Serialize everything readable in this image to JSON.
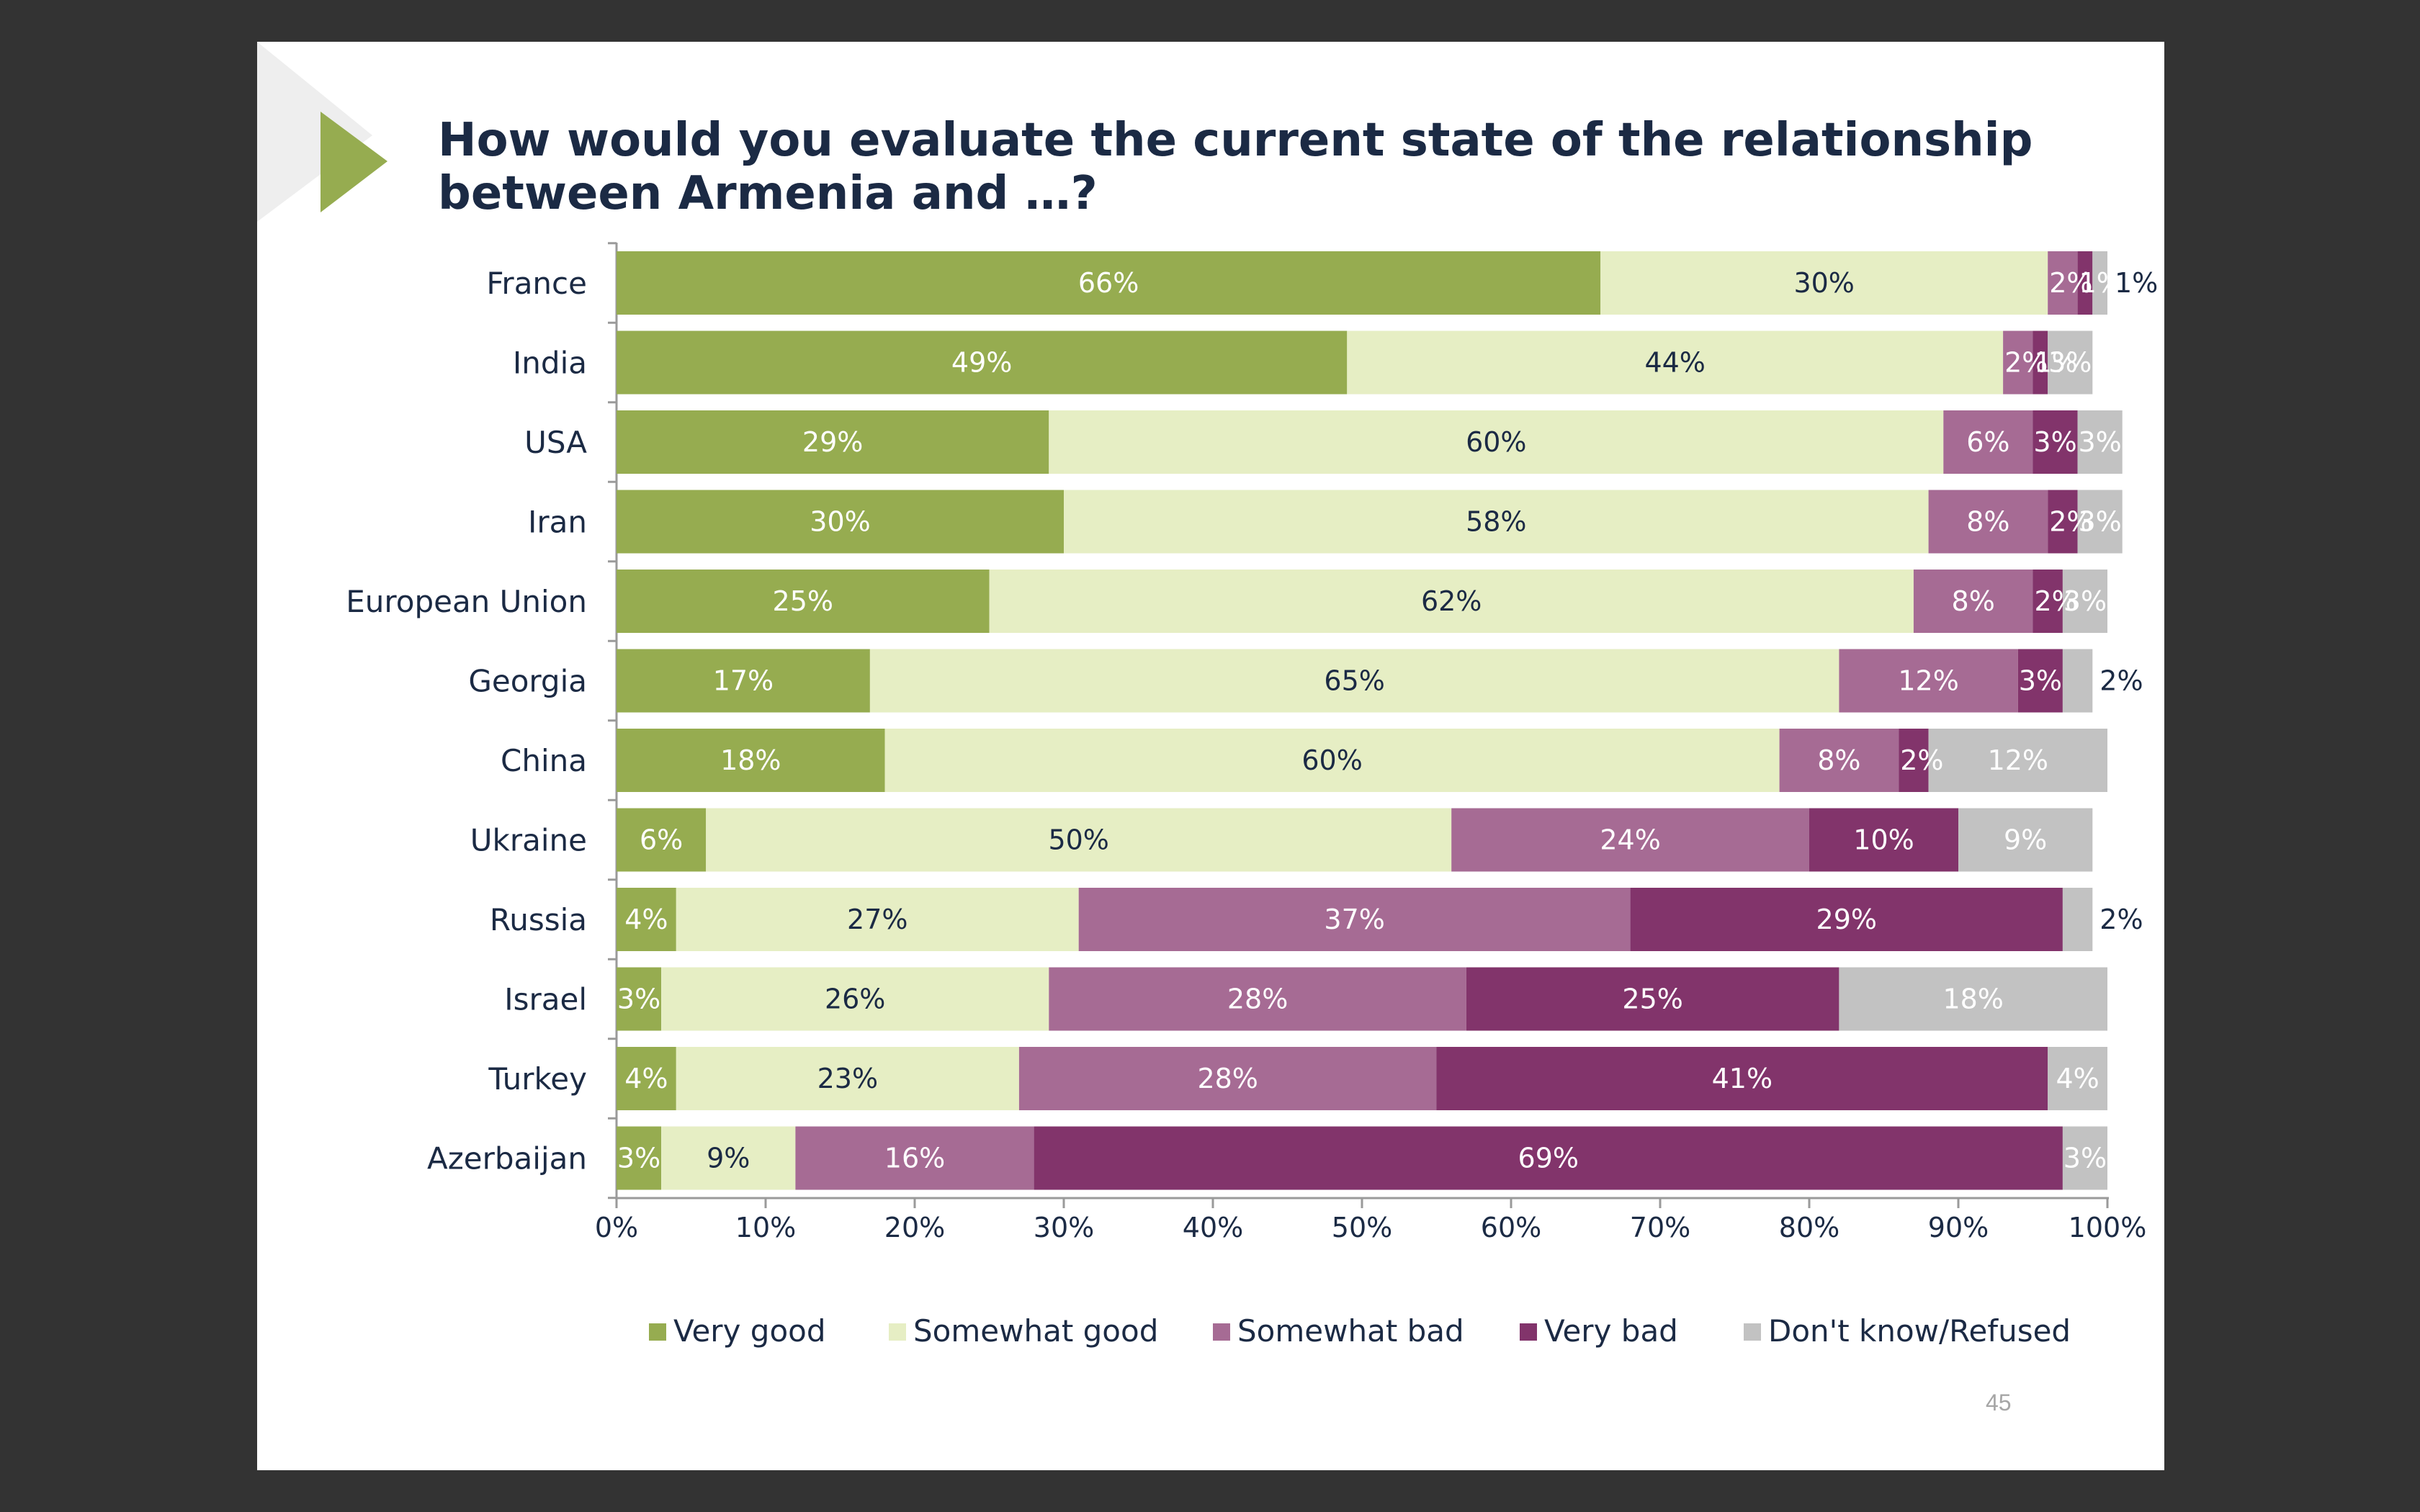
{
  "page": {
    "title": "How would you evaluate the current state of the relationship between Armenia and …?",
    "page_number": "45"
  },
  "colors": {
    "background": "#333333",
    "slide": "#ffffff",
    "accent": "#96ac50",
    "title": "#1b2a44"
  },
  "chart_data": {
    "type": "bar",
    "orientation": "horizontal",
    "stacked": true,
    "categories": [
      "France",
      "India",
      "USA",
      "Iran",
      "European Union",
      "Georgia",
      "China",
      "Ukraine",
      "Russia",
      "Israel",
      "Turkey",
      "Azerbaijan"
    ],
    "series": [
      {
        "name": "Very good",
        "color": "#96ac50",
        "label_color": "#ffffff",
        "values": [
          66,
          49,
          29,
          30,
          25,
          17,
          18,
          6,
          4,
          3,
          4,
          3
        ]
      },
      {
        "name": "Somewhat good",
        "color": "#e6eec4",
        "label_color": "#1b2a44",
        "values": [
          30,
          44,
          60,
          58,
          62,
          65,
          60,
          50,
          27,
          26,
          23,
          9
        ]
      },
      {
        "name": "Somewhat bad",
        "color": "#a66b94",
        "label_color": "#ffffff",
        "values": [
          2,
          2,
          6,
          8,
          8,
          12,
          8,
          24,
          37,
          28,
          28,
          16
        ]
      },
      {
        "name": "Very bad",
        "color": "#82346b",
        "label_color": "#ffffff",
        "values": [
          1,
          1,
          3,
          2,
          2,
          3,
          2,
          10,
          29,
          25,
          41,
          69
        ]
      },
      {
        "name": "Don't know/Refused",
        "color": "#c2c2c2",
        "label_color": "#ffffff",
        "values": [
          1,
          3,
          3,
          3,
          3,
          2,
          12,
          9,
          2,
          18,
          4,
          3
        ]
      }
    ],
    "value_labels": [
      [
        "66%",
        "30%",
        "2%",
        "1%",
        "1%"
      ],
      [
        "49%",
        "44%",
        "2%",
        "1%",
        "3%"
      ],
      [
        "29%",
        "60%",
        "6%",
        "3%",
        "3%"
      ],
      [
        "30%",
        "58%",
        "8%",
        "2%",
        "3%"
      ],
      [
        "25%",
        "62%",
        "8%",
        "2%",
        "3%"
      ],
      [
        "17%",
        "65%",
        "12%",
        "3%",
        "2%"
      ],
      [
        "18%",
        "60%",
        "8%",
        "2%",
        "12%"
      ],
      [
        "6%",
        "50%",
        "24%",
        "10%",
        "9%"
      ],
      [
        "4%",
        "27%",
        "37%",
        "29%",
        "2%"
      ],
      [
        "3%",
        "26%",
        "28%",
        "25%",
        "18%"
      ],
      [
        "4%",
        "23%",
        "28%",
        "41%",
        "4%"
      ],
      [
        "3%",
        "9%",
        "16%",
        "69%",
        "3%"
      ]
    ],
    "x_ticks": [
      "0%",
      "10%",
      "20%",
      "30%",
      "40%",
      "50%",
      "60%",
      "70%",
      "80%",
      "90%",
      "100%"
    ],
    "xlim": [
      0,
      100
    ],
    "xlabel": "",
    "ylabel": "",
    "legend_position": "bottom",
    "grid": false
  }
}
